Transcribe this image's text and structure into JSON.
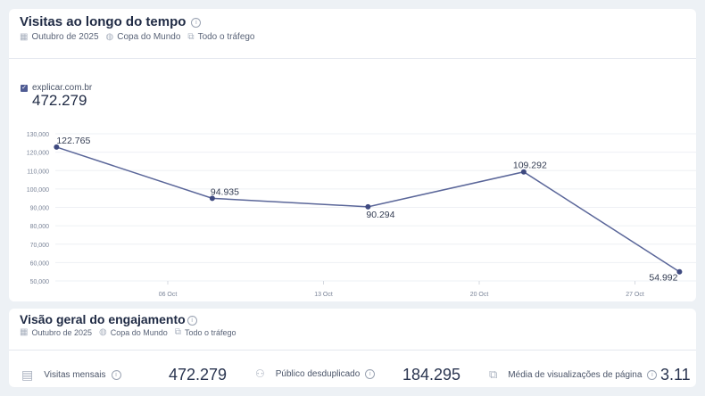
{
  "visits_card": {
    "title": "Visitas ao longo do tempo",
    "filters": {
      "period": "Outubro de 2025",
      "region": "Copa do Mundo",
      "traffic": "Todo o tráfego"
    },
    "legend": {
      "site": "explicar.com.br",
      "total": "472.279",
      "checked": true,
      "color": "#5a6699"
    }
  },
  "chart_data": {
    "type": "line",
    "x": [
      "01 Oct",
      "08 Oct",
      "15 Oct",
      "22 Oct",
      "29 Oct"
    ],
    "series": [
      {
        "name": "explicar.com.br",
        "values": [
          122765,
          94935,
          90294,
          109292,
          54992
        ],
        "labels": [
          "122.765",
          "94.935",
          "90.294",
          "109.292",
          "54.992"
        ]
      }
    ],
    "x_ticks": [
      "06 Oct",
      "13 Oct",
      "20 Oct",
      "27 Oct"
    ],
    "y_ticks": [
      "50,000",
      "60,000",
      "70,000",
      "80,000",
      "90,000",
      "100,000",
      "110,000",
      "120,000",
      "130,000"
    ],
    "ylim": [
      50000,
      130000
    ],
    "grid": true
  },
  "engagement": {
    "title": "Visão geral do engajamento",
    "filters": {
      "period": "Outubro de 2025",
      "region": "Copa do Mundo",
      "traffic": "Todo o tráfego"
    },
    "kpis": [
      {
        "label": "Visitas mensais",
        "value": "472.279",
        "icon": "calendar-icon"
      },
      {
        "label": "Público desduplicado",
        "value": "184.295",
        "icon": "users-icon"
      },
      {
        "label": "Média de visualizações de página",
        "value": "3.11",
        "icon": "pages-icon"
      }
    ]
  }
}
